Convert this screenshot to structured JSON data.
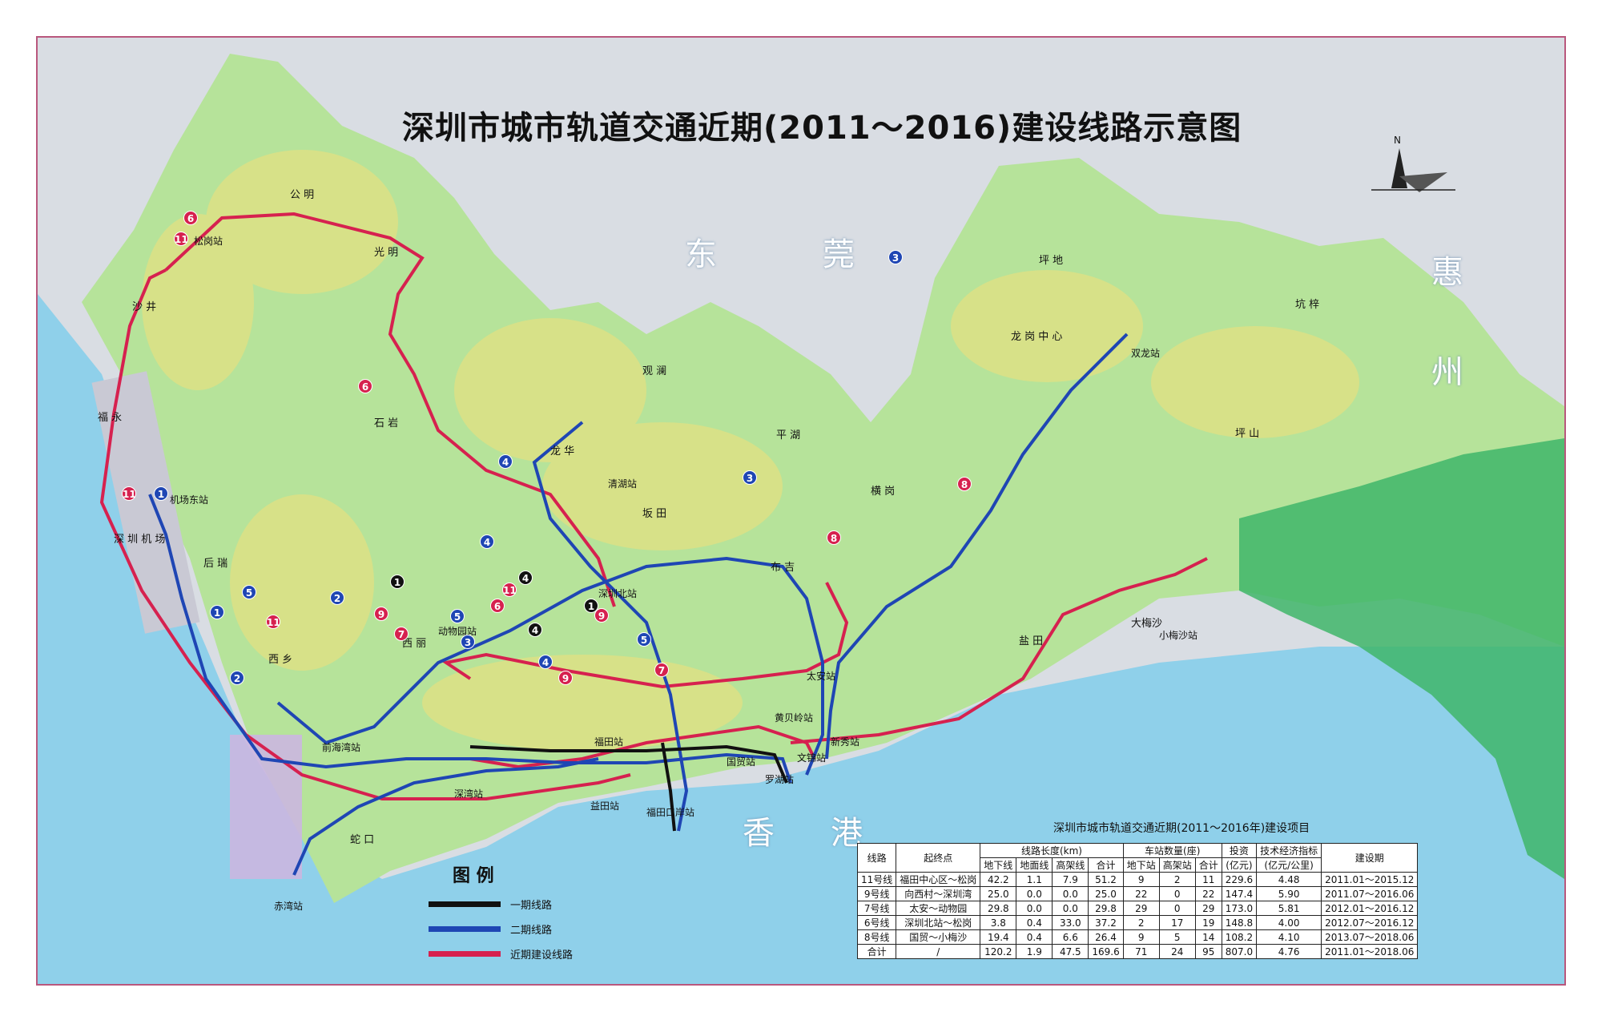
{
  "title": "深圳市城市轨道交通近期(2011～2016)建设线路示意图",
  "regions": {
    "dongguan_1": "东",
    "dongguan_2": "莞",
    "huizhou_1": "惠",
    "huizhou_2": "州",
    "xianggang_1": "香",
    "xianggang_2": "港"
  },
  "compass_label": "N",
  "colors": {
    "phase1": "#111111",
    "phase2": "#1f46b4",
    "near_term": "#d6214f",
    "sea": "#8fd0ea",
    "land": "#b6e39a",
    "border": "#b9577d"
  },
  "places": {
    "gongming": "公 明",
    "guangming": "光 明",
    "shajing": "沙 井",
    "fuyong": "福 永",
    "shiyan": "石 岩",
    "guanlan": "观 澜",
    "longhua": "龙 华",
    "pinghu": "平 湖",
    "bantian": "坂 田",
    "buji": "布 吉",
    "henggang": "横 岗",
    "longgang_center": "龙 岗 中 心",
    "pingdi": "坪 地",
    "kengzi": "坑 梓",
    "pingshan": "坪 山",
    "xixiang": "西 乡",
    "xili": "西 丽",
    "houruи": "后 瑞",
    "shenzhen_airport": "深 圳 机 场",
    "shekou": "蛇 口",
    "yantian": "盐 田",
    "dameisha": "大梅沙"
  },
  "stations": {
    "songgang": "松岗站",
    "jichangdong": "机场东站",
    "qinghu": "清湖站",
    "shenzhenbei": "深圳北站",
    "dongwuyuan": "动物园站",
    "taian": "太安站",
    "shuanglong": "双龙站",
    "xiaomeisha": "小梅沙站",
    "qianhaiwan": "前海湾站",
    "futian": "福田站",
    "huangbeiling": "黄贝岭站",
    "xinxiu": "新秀站",
    "guomao": "国贸站",
    "wenjin": "文锦站",
    "luohu": "罗湖站",
    "shenzhenwan": "深湾站",
    "yitian": "益田站",
    "futiankouan": "福田口岸站",
    "chiwan": "赤湾站"
  },
  "line_badges": [
    "1",
    "2",
    "3",
    "4",
    "5",
    "6",
    "7",
    "8",
    "9",
    "11"
  ],
  "legend": {
    "title": "图 例",
    "items": [
      {
        "label": "一期线路",
        "color": "#111111"
      },
      {
        "label": "二期线路",
        "color": "#1f46b4"
      },
      {
        "label": "近期建设线路",
        "color": "#d6214f"
      }
    ]
  },
  "table": {
    "title": "深圳市城市轨道交通近期(2011～2016年)建设项目",
    "head1": [
      "线路",
      "起终点",
      "线路长度(km)",
      "车站数量(座)",
      "投资",
      "技术经济指标",
      "建设期"
    ],
    "head2": [
      "地下线",
      "地面线",
      "高架线",
      "合计",
      "地下站",
      "高架站",
      "合计",
      "(亿元)",
      "(亿元/公里)"
    ],
    "rows": [
      [
        "11号线",
        "福田中心区～松岗",
        "42.2",
        "1.1",
        "7.9",
        "51.2",
        "9",
        "2",
        "11",
        "229.6",
        "4.48",
        "2011.01～2015.12"
      ],
      [
        "9号线",
        "向西村～深圳湾",
        "25.0",
        "0.0",
        "0.0",
        "25.0",
        "22",
        "0",
        "22",
        "147.4",
        "5.90",
        "2011.07～2016.06"
      ],
      [
        "7号线",
        "太安～动物园",
        "29.8",
        "0.0",
        "0.0",
        "29.8",
        "29",
        "0",
        "29",
        "173.0",
        "5.81",
        "2012.01～2016.12"
      ],
      [
        "6号线",
        "深圳北站～松岗",
        "3.8",
        "0.4",
        "33.0",
        "37.2",
        "2",
        "17",
        "19",
        "148.8",
        "4.00",
        "2012.07～2016.12"
      ],
      [
        "8号线",
        "国贸～小梅沙",
        "19.4",
        "0.4",
        "6.6",
        "26.4",
        "9",
        "5",
        "14",
        "108.2",
        "4.10",
        "2013.07～2018.06"
      ],
      [
        "合计",
        "/",
        "120.2",
        "1.9",
        "47.5",
        "169.6",
        "71",
        "24",
        "95",
        "807.0",
        "4.76",
        "2011.01～2018.06"
      ]
    ]
  }
}
